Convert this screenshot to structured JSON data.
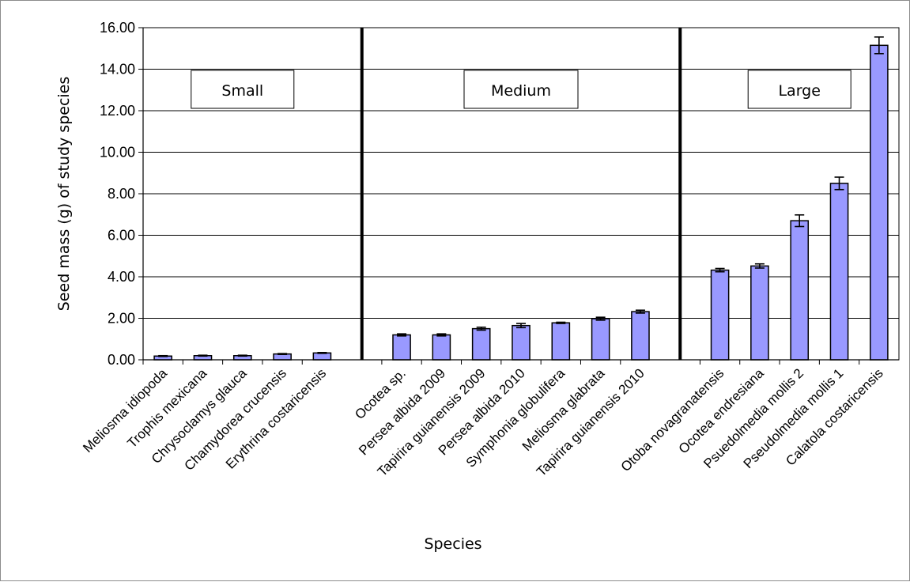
{
  "chart_data": {
    "type": "bar",
    "title": "",
    "xlabel": "Species",
    "ylabel": "Seed mass (g) of study species",
    "ylim": [
      0,
      16
    ],
    "yticks": [
      "0.00",
      "2.00",
      "4.00",
      "6.00",
      "8.00",
      "10.00",
      "12.00",
      "14.00",
      "16.00"
    ],
    "grid": true,
    "legend": "none",
    "bar_color": "#9999ff",
    "groups": [
      {
        "label": "Small",
        "categories": [
          "Meliosma idiopoda",
          "Trophis mexicana",
          "Chrysoclamys glauca",
          "Chamydorea crucensis",
          "Erythrina costaricensis"
        ]
      },
      {
        "label": "Medium",
        "categories": [
          "Ocotea sp.",
          "Persea albida 2009",
          "Tapirira guianensis 2009",
          "Persea albida 2010",
          "Symphonia globulifera",
          "Meliosma glabrata",
          "Tapirira guianensis 2010"
        ]
      },
      {
        "label": "Large",
        "categories": [
          "Otoba novagranatensis",
          "Ocotea endresiana",
          "Psuedolmedia mollis 2",
          "Pseudolmedia mollis 1",
          "Calatola costaricensis"
        ]
      }
    ],
    "categories": [
      "Meliosma idiopoda",
      "Trophis mexicana",
      "Chrysoclamys glauca",
      "Chamydorea crucensis",
      "Erythrina costaricensis",
      "Ocotea sp.",
      "Persea albida 2009",
      "Tapirira guianensis 2009",
      "Persea albida 2010",
      "Symphonia globulifera",
      "Meliosma glabrata",
      "Tapirira guianensis 2010",
      "Otoba novagranatensis",
      "Ocotea endresiana",
      "Psuedolmedia mollis 2",
      "Pseudolmedia mollis 1",
      "Calatola costaricensis"
    ],
    "values": [
      0.18,
      0.2,
      0.2,
      0.28,
      0.33,
      1.2,
      1.2,
      1.5,
      1.65,
      1.78,
      1.98,
      2.32,
      4.32,
      4.52,
      6.7,
      8.5,
      15.15
    ],
    "errors": [
      0.02,
      0.02,
      0.02,
      0.02,
      0.02,
      0.05,
      0.05,
      0.07,
      0.1,
      0.03,
      0.07,
      0.07,
      0.08,
      0.1,
      0.28,
      0.3,
      0.4
    ]
  }
}
